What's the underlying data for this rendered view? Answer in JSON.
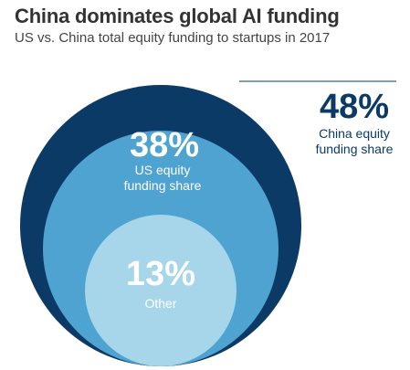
{
  "chart_data": {
    "type": "nested-circle",
    "title": "China dominates global AI funding",
    "subtitle": "US vs. China total equity funding to startups in 2017",
    "series": [
      {
        "value_label": "48%",
        "value": 48,
        "label_lines": [
          "China equity",
          "funding share"
        ],
        "color": "#0c3a66"
      },
      {
        "value_label": "38%",
        "value": 38,
        "label_lines": [
          "US equity",
          "funding share"
        ],
        "color": "#4ea3d0"
      },
      {
        "value_label": "13%",
        "value": 13,
        "label_lines": [
          "Other"
        ],
        "color": "#a7d6ea"
      }
    ]
  }
}
